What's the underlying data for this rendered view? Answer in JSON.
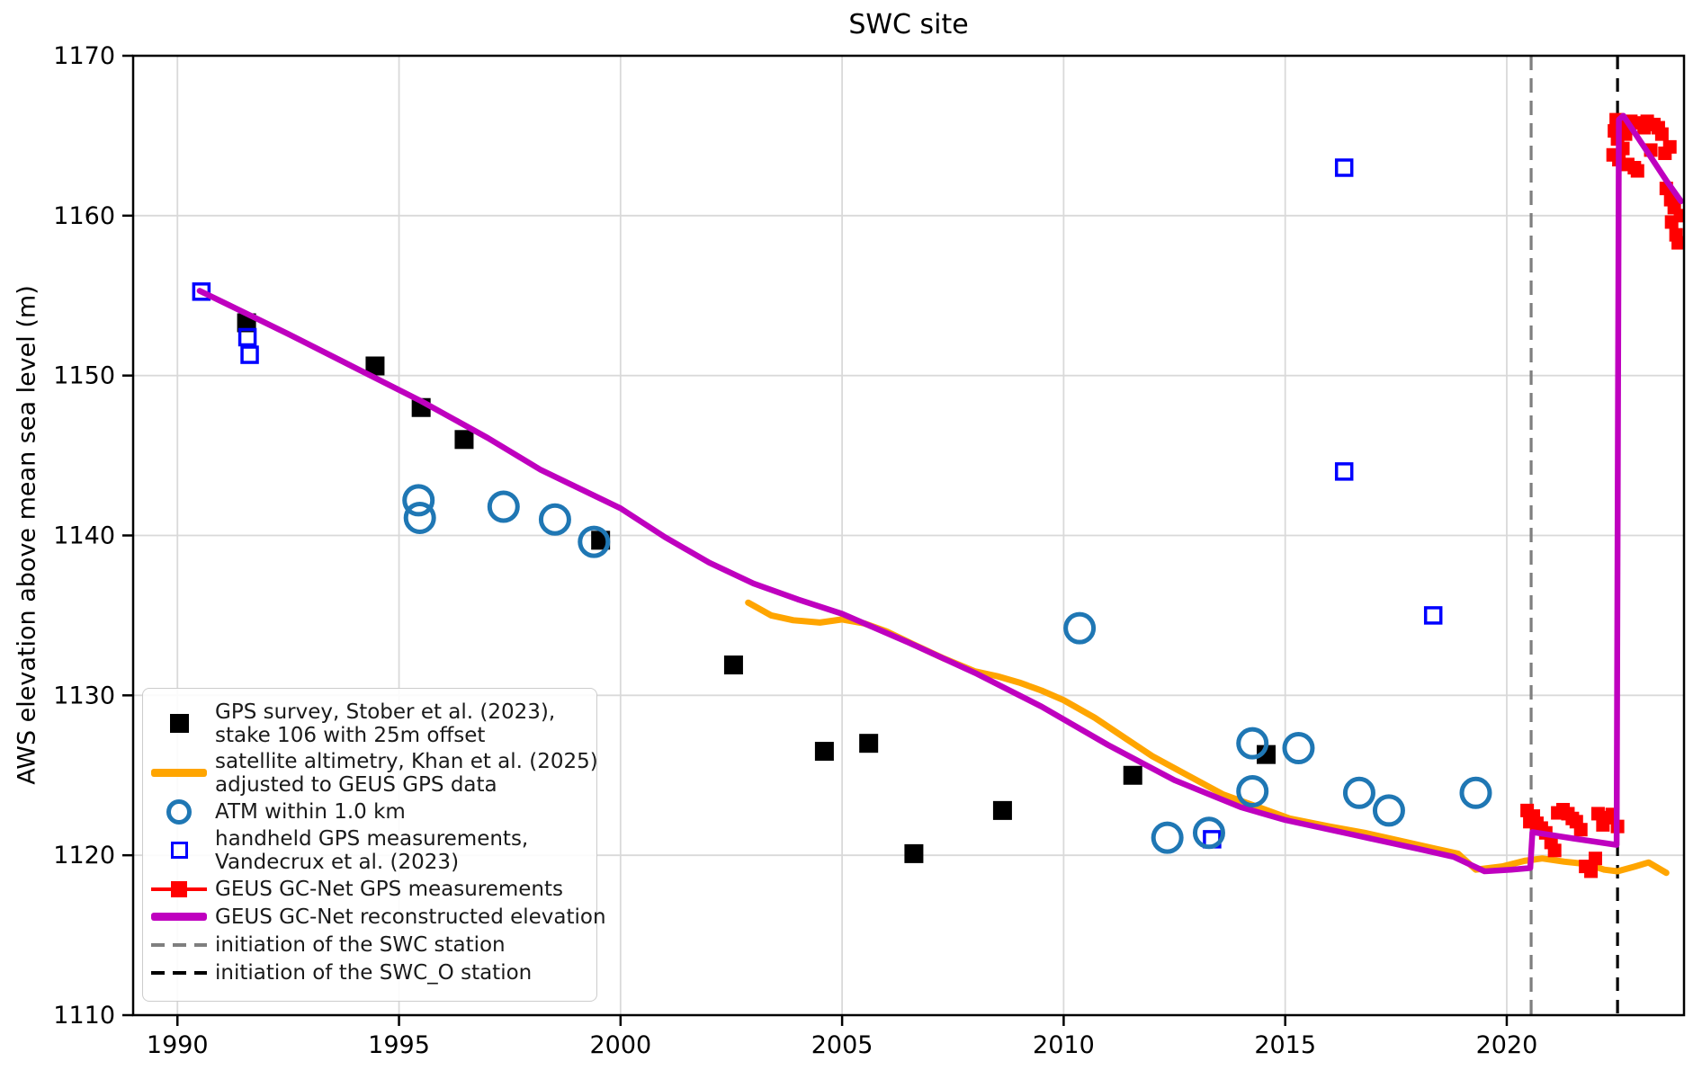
{
  "chart_data": {
    "type": "scatter",
    "title": "SWC site",
    "ylabel": "AWS elevation above mean sea level (m)",
    "xlabel": "",
    "xlim": [
      1989.0,
      2024.0
    ],
    "ylim": [
      1110,
      1170
    ],
    "xticks": [
      1990,
      1995,
      2000,
      2005,
      2010,
      2015,
      2020
    ],
    "yticks": [
      1110,
      1120,
      1130,
      1140,
      1150,
      1160,
      1170
    ],
    "grid": true,
    "colors": {
      "black": "#000000",
      "handheld_blue": "#0000ff",
      "atm_blue": "#1f77b4",
      "orange": "#ffa500",
      "magenta": "#bf00bf",
      "red": "#ff0000",
      "gray_dashed": "#7f7f7f",
      "grid": "#d9d9d9"
    },
    "series": [
      {
        "name": "satellite altimetry, Khan et al. (2025) adjusted to GEUS GPS data",
        "type": "line",
        "color": "#ffa500",
        "width": 7,
        "points": [
          [
            2002.88,
            1135.8
          ],
          [
            2003.4,
            1135.0
          ],
          [
            2003.9,
            1134.7
          ],
          [
            2004.5,
            1134.55
          ],
          [
            2005.0,
            1134.75
          ],
          [
            2005.5,
            1134.5
          ],
          [
            2006.0,
            1134.0
          ],
          [
            2006.6,
            1133.2
          ],
          [
            2007.3,
            1132.3
          ],
          [
            2008.0,
            1131.5
          ],
          [
            2008.5,
            1131.2
          ],
          [
            2009.0,
            1130.8
          ],
          [
            2009.5,
            1130.3
          ],
          [
            2010.0,
            1129.7
          ],
          [
            2010.7,
            1128.6
          ],
          [
            2011.4,
            1127.3
          ],
          [
            2012.0,
            1126.2
          ],
          [
            2012.8,
            1125.0
          ],
          [
            2013.6,
            1123.8
          ],
          [
            2014.3,
            1123.1
          ],
          [
            2015.1,
            1122.3
          ],
          [
            2016.0,
            1121.8
          ],
          [
            2016.8,
            1121.4
          ],
          [
            2017.6,
            1120.9
          ],
          [
            2018.4,
            1120.4
          ],
          [
            2018.9,
            1120.1
          ],
          [
            2019.3,
            1119.1
          ],
          [
            2019.9,
            1119.3
          ],
          [
            2020.4,
            1119.65
          ],
          [
            2020.8,
            1119.8
          ],
          [
            2021.3,
            1119.6
          ],
          [
            2021.8,
            1119.45
          ],
          [
            2022.2,
            1119.1
          ],
          [
            2022.5,
            1119.0
          ],
          [
            2022.9,
            1119.3
          ],
          [
            2023.2,
            1119.55
          ],
          [
            2023.6,
            1118.9
          ]
        ]
      },
      {
        "name": "GPS survey, Stober et al. (2023), stake 106 with 25m offset",
        "type": "scatter",
        "marker": "square",
        "color": "#000000",
        "size": 21,
        "points": [
          [
            1991.56,
            1153.3
          ],
          [
            1994.46,
            1150.6
          ],
          [
            1995.5,
            1148.0
          ],
          [
            1996.47,
            1146.0
          ],
          [
            1999.55,
            1139.7
          ],
          [
            2002.55,
            1131.9
          ],
          [
            2004.6,
            1126.5
          ],
          [
            2005.6,
            1127.0
          ],
          [
            2006.62,
            1120.1
          ],
          [
            2008.62,
            1122.8
          ],
          [
            2011.56,
            1125.0
          ],
          [
            2014.57,
            1126.3
          ]
        ]
      },
      {
        "name": "handheld GPS measurements, Vandecrux et al. (2023)",
        "type": "scatter",
        "marker": "square-open",
        "color": "#0000ff",
        "size": 17,
        "stroke": 3.5,
        "points": [
          [
            1990.54,
            1155.25
          ],
          [
            1991.58,
            1152.4
          ],
          [
            1991.63,
            1151.3
          ],
          [
            2013.35,
            1121.0
          ],
          [
            2016.33,
            1144.0
          ],
          [
            2016.33,
            1163.0
          ],
          [
            2018.34,
            1135.0
          ]
        ]
      },
      {
        "name": "GEUS GC-Net GPS measurements",
        "type": "scatter",
        "marker": "square",
        "color": "#ff0000",
        "size": 15,
        "points": [
          [
            2020.46,
            1122.8
          ],
          [
            2020.52,
            1122.1
          ],
          [
            2020.6,
            1122.45
          ],
          [
            2020.68,
            1122.0
          ],
          [
            2020.78,
            1121.7
          ],
          [
            2020.88,
            1121.4
          ],
          [
            2021.0,
            1120.8
          ],
          [
            2021.08,
            1120.3
          ],
          [
            2021.15,
            1122.65
          ],
          [
            2021.27,
            1122.85
          ],
          [
            2021.38,
            1122.6
          ],
          [
            2021.48,
            1122.3
          ],
          [
            2021.57,
            1122.1
          ],
          [
            2021.67,
            1121.6
          ],
          [
            2021.78,
            1119.3
          ],
          [
            2021.9,
            1119.0
          ],
          [
            2022.0,
            1119.8
          ],
          [
            2022.06,
            1122.6
          ],
          [
            2022.17,
            1121.9
          ],
          [
            2022.28,
            1122.35
          ],
          [
            2022.38,
            1122.55
          ],
          [
            2022.5,
            1121.8
          ],
          [
            2022.4,
            1163.8
          ],
          [
            2022.43,
            1165.3
          ],
          [
            2022.47,
            1166.0
          ],
          [
            2022.5,
            1164.8
          ],
          [
            2022.53,
            1163.5
          ],
          [
            2022.57,
            1165.6
          ],
          [
            2022.62,
            1164.2
          ],
          [
            2022.68,
            1165.1
          ],
          [
            2022.73,
            1163.2
          ],
          [
            2022.8,
            1165.9
          ],
          [
            2022.88,
            1163.0
          ],
          [
            2022.95,
            1162.8
          ],
          [
            2023.02,
            1165.8
          ],
          [
            2023.1,
            1165.5
          ],
          [
            2023.17,
            1165.9
          ],
          [
            2023.25,
            1164.1
          ],
          [
            2023.32,
            1165.7
          ],
          [
            2023.42,
            1165.5
          ],
          [
            2023.5,
            1165.1
          ],
          [
            2023.57,
            1163.9
          ],
          [
            2023.6,
            1161.7
          ],
          [
            2023.68,
            1164.3
          ],
          [
            2023.7,
            1161.0
          ],
          [
            2023.72,
            1159.6
          ],
          [
            2023.78,
            1160.5
          ],
          [
            2023.82,
            1158.8
          ],
          [
            2023.87,
            1158.3
          ],
          [
            2023.92,
            1160.0
          ]
        ]
      },
      {
        "name": "GEUS GC-Net reconstructed elevation",
        "type": "line",
        "color": "#bf00bf",
        "width": 6.5,
        "points": [
          [
            1990.5,
            1155.3
          ],
          [
            1992.5,
            1152.6
          ],
          [
            1994.0,
            1150.5
          ],
          [
            1995.5,
            1148.4
          ],
          [
            1997.0,
            1146.1
          ],
          [
            1998.2,
            1144.1
          ],
          [
            2000.0,
            1141.7
          ],
          [
            2001.0,
            1139.9
          ],
          [
            2002.0,
            1138.3
          ],
          [
            2003.0,
            1137.0
          ],
          [
            2004.0,
            1136.0
          ],
          [
            2005.0,
            1135.1
          ],
          [
            2006.5,
            1133.3
          ],
          [
            2008.0,
            1131.4
          ],
          [
            2009.5,
            1129.3
          ],
          [
            2011.0,
            1126.9
          ],
          [
            2012.5,
            1124.7
          ],
          [
            2014.0,
            1123.0
          ],
          [
            2015.0,
            1122.2
          ],
          [
            2016.5,
            1121.3
          ],
          [
            2018.0,
            1120.4
          ],
          [
            2018.8,
            1119.9
          ],
          [
            2019.5,
            1119.0
          ],
          [
            2020.1,
            1119.1
          ],
          [
            2020.53,
            1119.2
          ],
          [
            2020.58,
            1121.45
          ],
          [
            2021.5,
            1121.05
          ],
          [
            2022.48,
            1120.65
          ],
          [
            2022.53,
            1166.0
          ],
          [
            2022.63,
            1166.25
          ],
          [
            2023.1,
            1164.3
          ],
          [
            2023.6,
            1162.2
          ],
          [
            2023.93,
            1160.9
          ]
        ]
      },
      {
        "name": "ATM within 1.0 km",
        "type": "scatter",
        "marker": "circle-open",
        "color": "#1f77b4",
        "size": 36,
        "stroke": 5,
        "points": [
          [
            1995.44,
            1142.2
          ],
          [
            1995.47,
            1141.1
          ],
          [
            1997.36,
            1141.8
          ],
          [
            1998.52,
            1141.0
          ],
          [
            1999.4,
            1139.6
          ],
          [
            2010.36,
            1134.2
          ],
          [
            2012.34,
            1121.1
          ],
          [
            2013.28,
            1121.4
          ],
          [
            2014.26,
            1127.0
          ],
          [
            2014.26,
            1124.0
          ],
          [
            2015.3,
            1126.7
          ],
          [
            2016.67,
            1123.9
          ],
          [
            2017.34,
            1122.8
          ],
          [
            2019.3,
            1123.9
          ]
        ]
      }
    ],
    "vlines": [
      {
        "x": 2020.55,
        "color": "#7f7f7f",
        "dash": [
          16,
          9
        ],
        "label": "initiation of the SWC station"
      },
      {
        "x": 2022.5,
        "color": "#000000",
        "dash": [
          15,
          10
        ],
        "label": "initiation of the SWC_O station"
      }
    ],
    "legend": {
      "position": "lower left",
      "items": [
        {
          "marker": {
            "kind": "square-filled",
            "color": "#000000"
          },
          "lines": [
            "GPS survey, Stober et al. (2023),",
            "stake 106 with 25m offset"
          ]
        },
        {
          "marker": {
            "kind": "thick-line",
            "color": "#ffa500"
          },
          "lines": [
            "satellite altimetry, Khan et al. (2025)",
            "adjusted to GEUS GPS data"
          ]
        },
        {
          "marker": {
            "kind": "circle-open",
            "color": "#1f77b4"
          },
          "lines": [
            "ATM within 1.0 km"
          ]
        },
        {
          "marker": {
            "kind": "square-open",
            "color": "#0000ff"
          },
          "lines": [
            "handheld GPS measurements,",
            "Vandecrux et al. (2023)"
          ]
        },
        {
          "marker": {
            "kind": "line-square",
            "color": "#ff0000"
          },
          "lines": [
            "GEUS GC-Net GPS measurements"
          ]
        },
        {
          "marker": {
            "kind": "thick-line",
            "color": "#bf00bf"
          },
          "lines": [
            "GEUS GC-Net reconstructed elevation"
          ]
        },
        {
          "marker": {
            "kind": "dashed-line",
            "color": "#7f7f7f"
          },
          "lines": [
            "initiation of the SWC station"
          ]
        },
        {
          "marker": {
            "kind": "dashed-line",
            "color": "#000000"
          },
          "lines": [
            "initiation of the SWC_O station"
          ]
        }
      ]
    }
  }
}
